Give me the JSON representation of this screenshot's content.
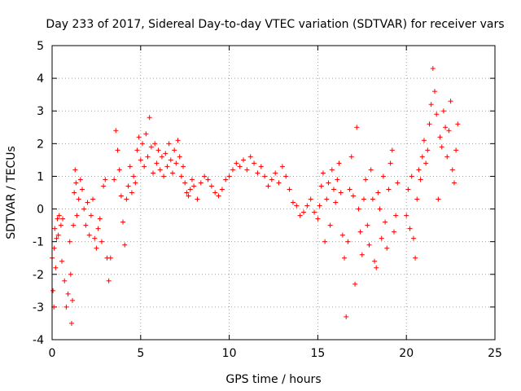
{
  "chart_data": {
    "type": "scatter",
    "title": "Day 233 of 2017, Sidereal Day-to-day VTEC variation (SDTVAR) for receiver vars",
    "xlabel": "GPS time / hours",
    "ylabel": "SDTVAR / TECUs",
    "xlim": [
      0,
      25
    ],
    "ylim": [
      -4,
      5
    ],
    "x_ticks": [
      0,
      5,
      10,
      15,
      20,
      25
    ],
    "y_ticks": [
      -4,
      -3,
      -2,
      -1,
      0,
      1,
      2,
      3,
      4,
      5
    ],
    "x_tick_labels": [
      "0",
      "5",
      "10",
      "15",
      "20",
      "25"
    ],
    "y_tick_labels": [
      "-4",
      "-3",
      "-2",
      "-1",
      "0",
      "1",
      "2",
      "3",
      "4",
      "5"
    ],
    "grid": true,
    "marker": "+",
    "marker_color": "#ff0000",
    "series": [
      {
        "name": "SDTVAR",
        "points": [
          [
            0.0,
            -1.5
          ],
          [
            0.05,
            -2.5
          ],
          [
            0.1,
            -3.0
          ],
          [
            0.12,
            -1.2
          ],
          [
            0.15,
            -0.6
          ],
          [
            0.2,
            -1.8
          ],
          [
            0.25,
            -0.9
          ],
          [
            0.3,
            -0.3
          ],
          [
            0.35,
            -0.8
          ],
          [
            0.4,
            -0.2
          ],
          [
            0.5,
            -0.5
          ],
          [
            0.55,
            -1.6
          ],
          [
            0.6,
            -0.3
          ],
          [
            0.7,
            -2.2
          ],
          [
            0.8,
            -3.0
          ],
          [
            0.9,
            -2.6
          ],
          [
            1.0,
            -1.0
          ],
          [
            1.05,
            -2.0
          ],
          [
            1.1,
            -3.5
          ],
          [
            1.15,
            -2.8
          ],
          [
            1.2,
            -0.5
          ],
          [
            1.25,
            0.5
          ],
          [
            1.3,
            1.2
          ],
          [
            1.35,
            0.8
          ],
          [
            1.4,
            -0.2
          ],
          [
            1.5,
            0.3
          ],
          [
            1.6,
            0.9
          ],
          [
            1.7,
            0.6
          ],
          [
            1.8,
            0.0
          ],
          [
            1.9,
            -0.5
          ],
          [
            2.0,
            0.2
          ],
          [
            2.1,
            -0.8
          ],
          [
            2.2,
            -0.2
          ],
          [
            2.3,
            0.3
          ],
          [
            2.4,
            -0.9
          ],
          [
            2.5,
            -1.2
          ],
          [
            2.6,
            -0.6
          ],
          [
            2.7,
            -0.3
          ],
          [
            2.8,
            -1.0
          ],
          [
            2.9,
            0.7
          ],
          [
            3.0,
            0.9
          ],
          [
            3.1,
            -1.5
          ],
          [
            3.2,
            -2.2
          ],
          [
            3.3,
            -1.5
          ],
          [
            3.5,
            0.9
          ],
          [
            3.6,
            2.4
          ],
          [
            3.7,
            1.8
          ],
          [
            3.8,
            1.2
          ],
          [
            3.9,
            0.4
          ],
          [
            4.0,
            -0.4
          ],
          [
            4.1,
            -1.1
          ],
          [
            4.2,
            0.3
          ],
          [
            4.3,
            0.7
          ],
          [
            4.4,
            1.3
          ],
          [
            4.5,
            0.5
          ],
          [
            4.6,
            1.0
          ],
          [
            4.7,
            0.8
          ],
          [
            4.8,
            1.8
          ],
          [
            4.9,
            2.2
          ],
          [
            5.0,
            1.5
          ],
          [
            5.1,
            2.0
          ],
          [
            5.2,
            1.3
          ],
          [
            5.3,
            2.3
          ],
          [
            5.4,
            1.6
          ],
          [
            5.5,
            2.8
          ],
          [
            5.6,
            1.9
          ],
          [
            5.7,
            1.1
          ],
          [
            5.8,
            2.0
          ],
          [
            5.9,
            1.4
          ],
          [
            6.0,
            1.8
          ],
          [
            6.1,
            1.2
          ],
          [
            6.2,
            1.6
          ],
          [
            6.3,
            1.0
          ],
          [
            6.4,
            1.7
          ],
          [
            6.5,
            1.3
          ],
          [
            6.6,
            2.0
          ],
          [
            6.7,
            1.5
          ],
          [
            6.8,
            1.1
          ],
          [
            6.9,
            1.8
          ],
          [
            7.0,
            1.4
          ],
          [
            7.1,
            2.1
          ],
          [
            7.2,
            1.6
          ],
          [
            7.3,
            1.0
          ],
          [
            7.4,
            1.3
          ],
          [
            7.5,
            0.8
          ],
          [
            7.6,
            0.5
          ],
          [
            7.7,
            0.4
          ],
          [
            7.8,
            0.6
          ],
          [
            7.9,
            0.9
          ],
          [
            8.0,
            0.7
          ],
          [
            8.2,
            0.3
          ],
          [
            8.4,
            0.8
          ],
          [
            8.6,
            1.0
          ],
          [
            8.8,
            0.9
          ],
          [
            9.0,
            0.7
          ],
          [
            9.2,
            0.5
          ],
          [
            9.4,
            0.4
          ],
          [
            9.6,
            0.6
          ],
          [
            9.8,
            0.9
          ],
          [
            10.0,
            1.0
          ],
          [
            10.2,
            1.2
          ],
          [
            10.4,
            1.4
          ],
          [
            10.6,
            1.3
          ],
          [
            10.8,
            1.5
          ],
          [
            11.0,
            1.2
          ],
          [
            11.2,
            1.6
          ],
          [
            11.4,
            1.4
          ],
          [
            11.6,
            1.1
          ],
          [
            11.8,
            1.3
          ],
          [
            12.0,
            1.0
          ],
          [
            12.2,
            0.7
          ],
          [
            12.4,
            0.9
          ],
          [
            12.6,
            1.1
          ],
          [
            12.8,
            0.8
          ],
          [
            13.0,
            1.3
          ],
          [
            13.2,
            1.0
          ],
          [
            13.4,
            0.6
          ],
          [
            13.6,
            0.2
          ],
          [
            13.8,
            0.1
          ],
          [
            14.0,
            -0.2
          ],
          [
            14.2,
            -0.1
          ],
          [
            14.4,
            0.1
          ],
          [
            14.6,
            0.3
          ],
          [
            14.8,
            -0.1
          ],
          [
            15.0,
            -0.3
          ],
          [
            15.1,
            0.1
          ],
          [
            15.2,
            0.7
          ],
          [
            15.3,
            1.1
          ],
          [
            15.4,
            -1.0
          ],
          [
            15.5,
            0.3
          ],
          [
            15.6,
            0.8
          ],
          [
            15.7,
            -0.5
          ],
          [
            15.8,
            1.2
          ],
          [
            15.9,
            0.6
          ],
          [
            16.0,
            0.2
          ],
          [
            16.1,
            0.9
          ],
          [
            16.2,
            1.4
          ],
          [
            16.3,
            0.5
          ],
          [
            16.4,
            -0.8
          ],
          [
            16.5,
            -1.5
          ],
          [
            16.6,
            -3.3
          ],
          [
            16.7,
            -1.0
          ],
          [
            16.8,
            0.6
          ],
          [
            16.9,
            1.6
          ],
          [
            17.0,
            0.4
          ],
          [
            17.1,
            -2.3
          ],
          [
            17.2,
            2.5
          ],
          [
            17.3,
            0.0
          ],
          [
            17.4,
            -0.7
          ],
          [
            17.5,
            -1.4
          ],
          [
            17.6,
            0.3
          ],
          [
            17.7,
            0.9
          ],
          [
            17.8,
            -0.5
          ],
          [
            17.9,
            -1.1
          ],
          [
            18.0,
            1.2
          ],
          [
            18.1,
            0.3
          ],
          [
            18.2,
            -1.6
          ],
          [
            18.3,
            -1.8
          ],
          [
            18.4,
            0.5
          ],
          [
            18.5,
            0.0
          ],
          [
            18.6,
            -0.9
          ],
          [
            18.7,
            1.0
          ],
          [
            18.8,
            -0.4
          ],
          [
            18.9,
            -1.2
          ],
          [
            19.0,
            0.6
          ],
          [
            19.1,
            1.4
          ],
          [
            19.2,
            1.8
          ],
          [
            19.3,
            -0.7
          ],
          [
            19.4,
            -0.2
          ],
          [
            19.5,
            0.8
          ],
          [
            20.0,
            -0.2
          ],
          [
            20.1,
            0.6
          ],
          [
            20.2,
            -0.6
          ],
          [
            20.3,
            1.0
          ],
          [
            20.4,
            -0.9
          ],
          [
            20.5,
            -1.5
          ],
          [
            20.6,
            0.3
          ],
          [
            20.7,
            1.2
          ],
          [
            20.8,
            0.9
          ],
          [
            20.9,
            1.6
          ],
          [
            21.0,
            2.1
          ],
          [
            21.1,
            1.4
          ],
          [
            21.2,
            1.8
          ],
          [
            21.3,
            2.6
          ],
          [
            21.4,
            3.2
          ],
          [
            21.5,
            4.3
          ],
          [
            21.6,
            3.6
          ],
          [
            21.7,
            2.9
          ],
          [
            21.8,
            0.3
          ],
          [
            21.9,
            2.2
          ],
          [
            22.0,
            1.9
          ],
          [
            22.1,
            3.0
          ],
          [
            22.2,
            2.5
          ],
          [
            22.3,
            1.6
          ],
          [
            22.4,
            2.4
          ],
          [
            22.5,
            3.3
          ],
          [
            22.6,
            1.2
          ],
          [
            22.7,
            0.8
          ],
          [
            22.8,
            1.8
          ],
          [
            22.9,
            2.6
          ]
        ]
      }
    ]
  }
}
